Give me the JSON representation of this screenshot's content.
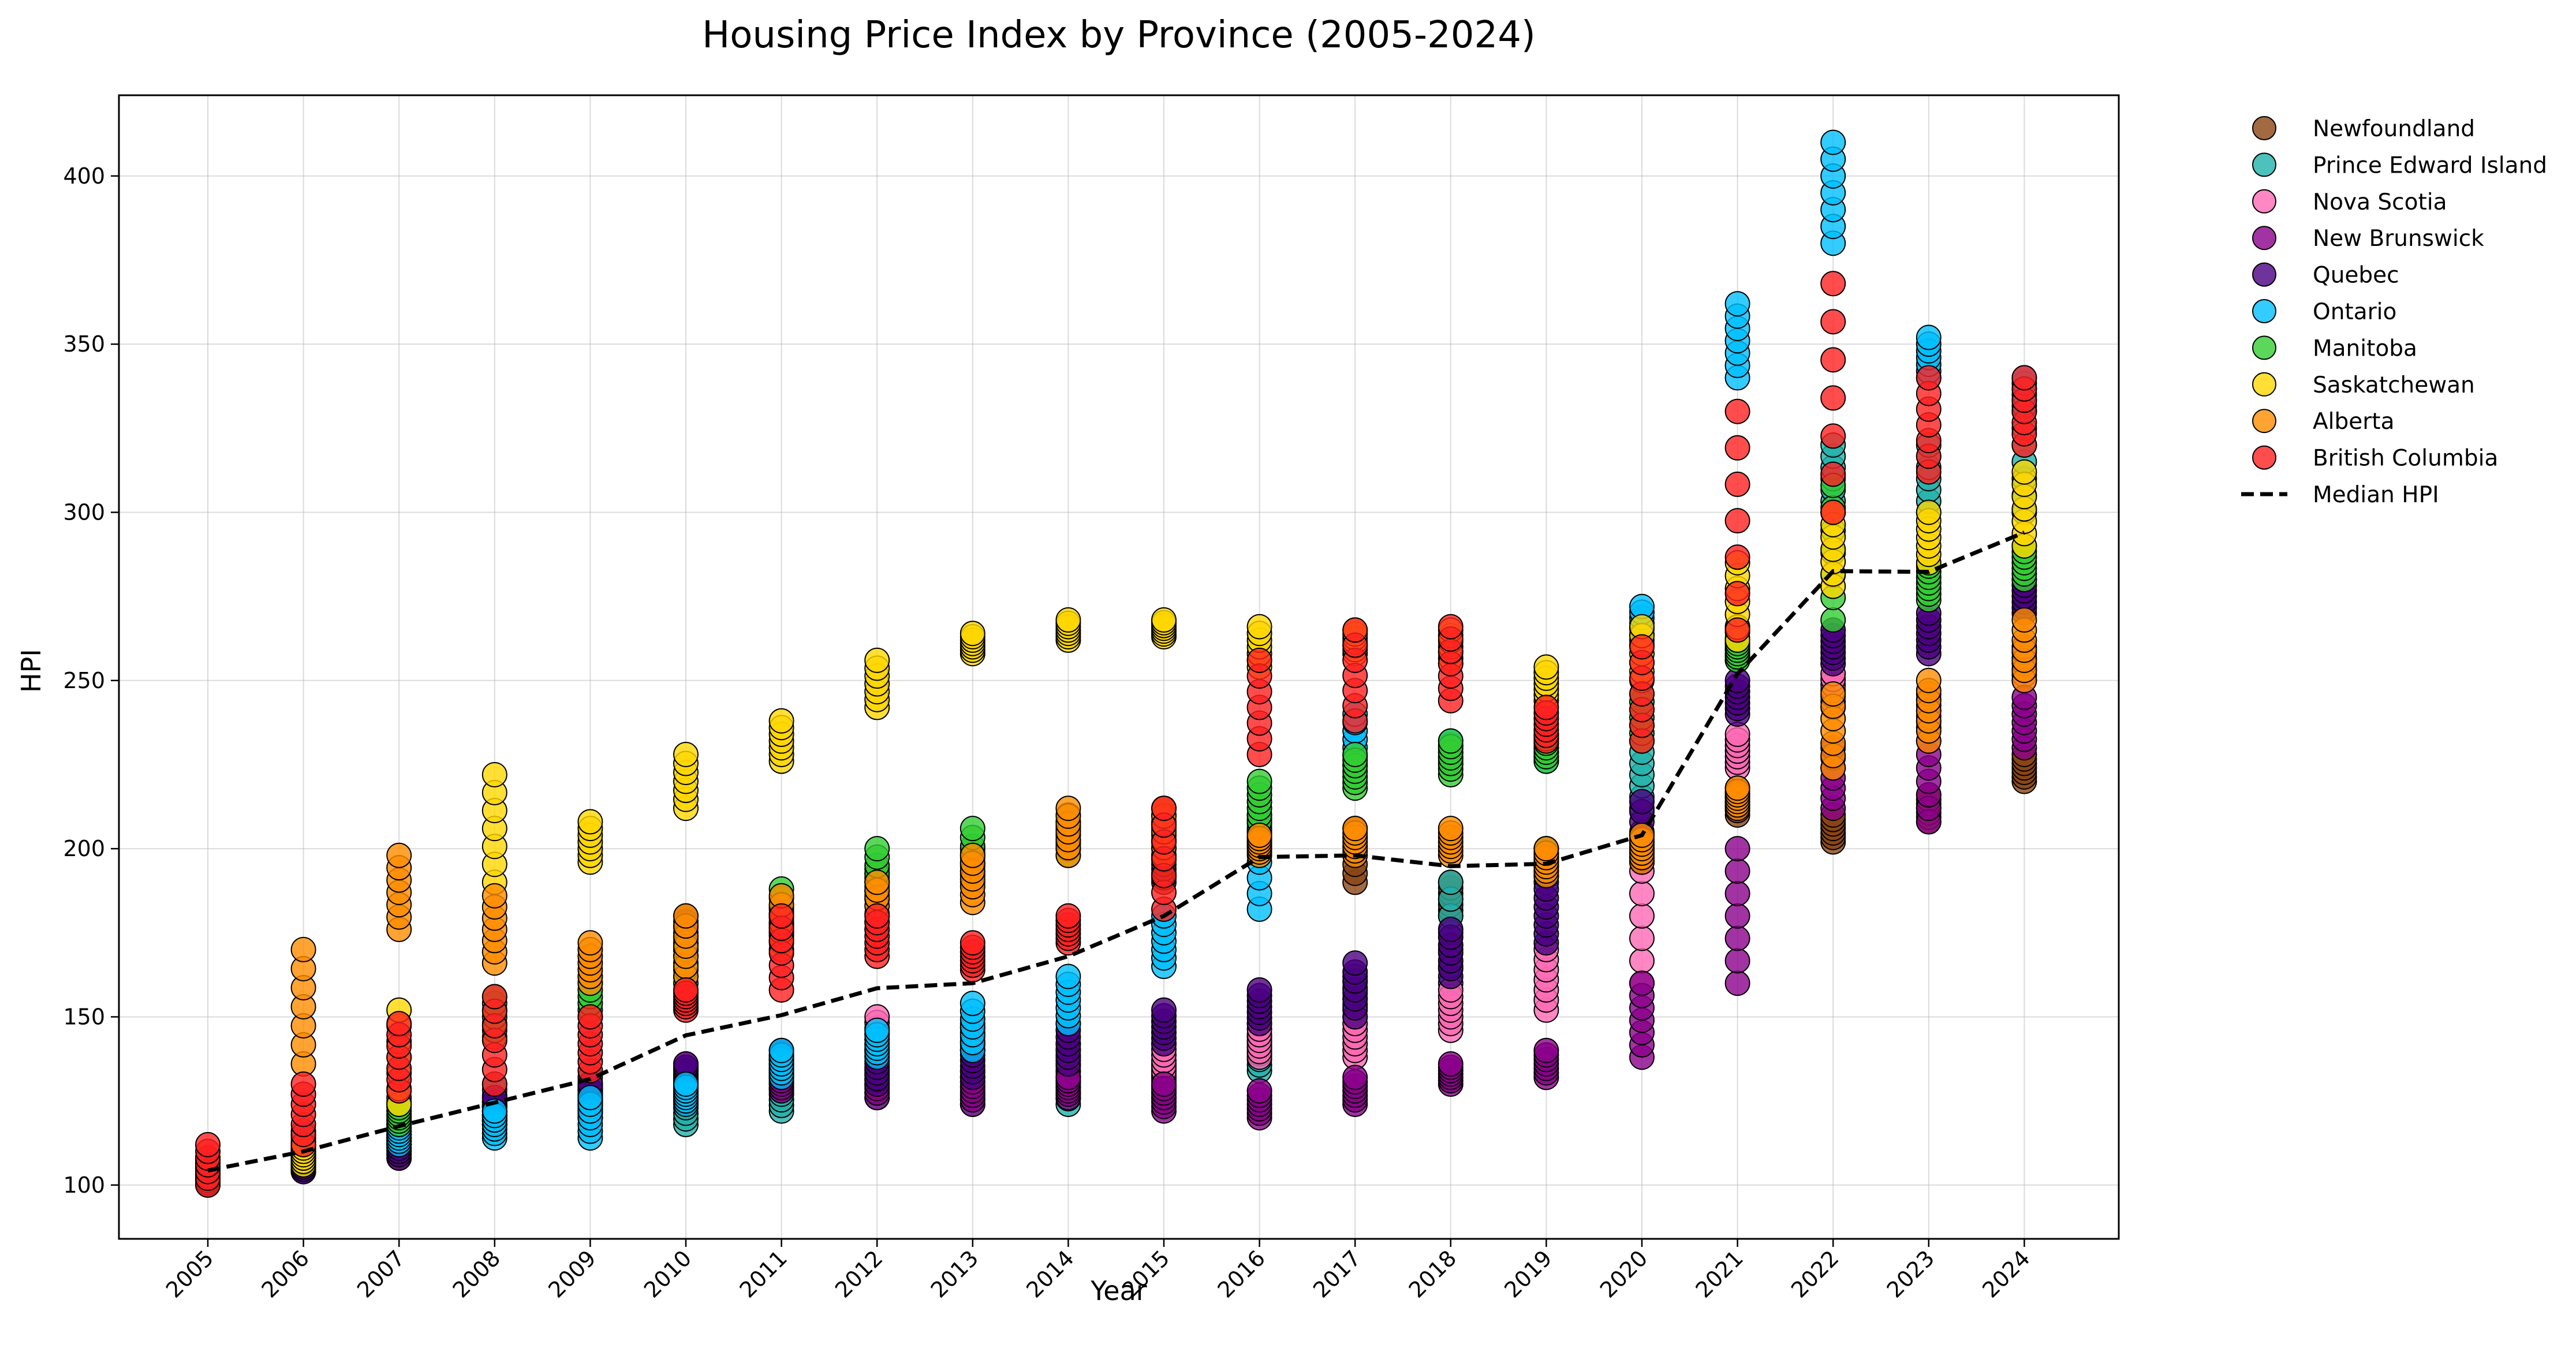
{
  "chart_data": {
    "type": "scatter",
    "title": "Housing Price Index by Province (2005-2024)",
    "xlabel": "Year",
    "ylabel": "HPI",
    "ylim": [
      84,
      424
    ],
    "yticks": [
      100,
      150,
      200,
      250,
      300,
      350,
      400
    ],
    "grid": true,
    "legend_position": "outside-right",
    "categories": [
      "2005",
      "2006",
      "2007",
      "2008",
      "2009",
      "2010",
      "2011",
      "2012",
      "2013",
      "2014",
      "2015",
      "2016",
      "2017",
      "2018",
      "2019",
      "2020",
      "2021",
      "2022",
      "2023",
      "2024"
    ],
    "series": [
      {
        "name": "Newfoundland",
        "color": "#8B4513",
        "values": [
          [
            100,
            104
          ],
          [
            108,
            112
          ],
          [
            108,
            116
          ],
          [
            118,
            126
          ],
          [
            122,
            130
          ],
          [
            170,
            180
          ],
          [
            174,
            182
          ],
          [
            186,
            194
          ],
          [
            192,
            200
          ],
          [
            200,
            208
          ],
          [
            190,
            198
          ],
          [
            202,
            210
          ],
          [
            190,
            206
          ],
          [
            180,
            190
          ],
          [
            192,
            200
          ],
          [
            196,
            204
          ],
          [
            210,
            218
          ],
          [
            202,
            210
          ],
          [
            208,
            216
          ],
          [
            220,
            228
          ]
        ]
      },
      {
        "name": "Prince Edward Island",
        "color": "#20B2AA",
        "values": [
          [
            102,
            108
          ],
          [
            110,
            116
          ],
          [
            118,
            126
          ],
          [
            120,
            130
          ],
          [
            124,
            132
          ],
          [
            118,
            128
          ],
          [
            122,
            132
          ],
          [
            126,
            136
          ],
          [
            124,
            134
          ],
          [
            124,
            134
          ],
          [
            126,
            136
          ],
          [
            134,
            144
          ],
          [
            152,
            162
          ],
          [
            160,
            190
          ],
          [
            190,
            200
          ],
          [
            212,
            232
          ],
          [
            256,
            266
          ],
          [
            300,
            320
          ],
          [
            300,
            320
          ],
          [
            300,
            330
          ]
        ]
      },
      {
        "name": "Nova Scotia",
        "color": "#FF69B4",
        "values": [
          [
            102,
            106
          ],
          [
            106,
            112
          ],
          [
            112,
            118
          ],
          [
            118,
            124
          ],
          [
            124,
            130
          ],
          [
            130,
            136
          ],
          [
            132,
            138
          ],
          [
            140,
            150
          ],
          [
            140,
            148
          ],
          [
            132,
            142
          ],
          [
            132,
            142
          ],
          [
            138,
            148
          ],
          [
            138,
            150
          ],
          [
            146,
            158
          ],
          [
            152,
            170
          ],
          [
            160,
            200
          ],
          [
            224,
            234
          ],
          [
            242,
            252
          ],
          [
            236,
            246
          ],
          [
            250,
            260
          ]
        ]
      },
      {
        "name": "New Brunswick",
        "color": "#8B008B",
        "values": [
          [
            102,
            106
          ],
          [
            104,
            108
          ],
          [
            110,
            116
          ],
          [
            118,
            124
          ],
          [
            120,
            128
          ],
          [
            126,
            132
          ],
          [
            128,
            134
          ],
          [
            126,
            134
          ],
          [
            124,
            132
          ],
          [
            126,
            132
          ],
          [
            122,
            130
          ],
          [
            120,
            128
          ],
          [
            124,
            132
          ],
          [
            130,
            136
          ],
          [
            132,
            140
          ],
          [
            138,
            160
          ],
          [
            160,
            200
          ],
          [
            212,
            230
          ],
          [
            208,
            232
          ],
          [
            230,
            245
          ]
        ]
      },
      {
        "name": "Quebec",
        "color": "#4B0082",
        "values": [
          [
            103,
            108
          ],
          [
            104,
            108
          ],
          [
            108,
            114
          ],
          [
            118,
            126
          ],
          [
            120,
            130
          ],
          [
            130,
            136
          ],
          [
            132,
            140
          ],
          [
            130,
            140
          ],
          [
            132,
            142
          ],
          [
            136,
            148
          ],
          [
            142,
            152
          ],
          [
            148,
            158
          ],
          [
            150,
            166
          ],
          [
            162,
            176
          ],
          [
            172,
            188
          ],
          [
            196,
            214
          ],
          [
            240,
            250
          ],
          [
            255,
            265
          ],
          [
            258,
            270
          ],
          [
            270,
            280
          ]
        ]
      },
      {
        "name": "Ontario",
        "color": "#00BFFF",
        "values": [
          [
            103,
            108
          ],
          [
            106,
            110
          ],
          [
            112,
            118
          ],
          [
            114,
            122
          ],
          [
            114,
            126
          ],
          [
            124,
            130
          ],
          [
            132,
            140
          ],
          [
            138,
            146
          ],
          [
            140,
            154
          ],
          [
            148,
            162
          ],
          [
            165,
            180
          ],
          [
            182,
            210
          ],
          [
            225,
            240
          ],
          [
            225,
            232
          ],
          [
            226,
            234
          ],
          [
            262,
            272
          ],
          [
            340,
            362
          ],
          [
            380,
            410
          ],
          [
            340,
            352
          ],
          [
            330,
            340
          ]
        ]
      },
      {
        "name": "Manitoba",
        "color": "#32CD32",
        "values": [
          [
            103,
            107
          ],
          [
            108,
            112
          ],
          [
            118,
            124
          ],
          [
            144,
            156
          ],
          [
            150,
            162
          ],
          [
            160,
            172
          ],
          [
            172,
            188
          ],
          [
            185,
            200
          ],
          [
            190,
            206
          ],
          [
            198,
            210
          ],
          [
            200,
            212
          ],
          [
            208,
            220
          ],
          [
            218,
            228
          ],
          [
            222,
            232
          ],
          [
            226,
            234
          ],
          [
            232,
            246
          ],
          [
            256,
            262
          ],
          [
            268,
            308
          ],
          [
            274,
            284
          ],
          [
            280,
            290
          ]
        ]
      },
      {
        "name": "Saskatchewan",
        "color": "#FFD700",
        "values": [
          [
            104,
            108
          ],
          [
            106,
            112
          ],
          [
            124,
            152
          ],
          [
            190,
            222
          ],
          [
            196,
            208
          ],
          [
            212,
            228
          ],
          [
            226,
            238
          ],
          [
            242,
            256
          ],
          [
            258,
            264
          ],
          [
            262,
            268
          ],
          [
            263,
            268
          ],
          [
            254,
            266
          ],
          [
            258,
            265
          ],
          [
            255,
            265
          ],
          [
            244,
            254
          ],
          [
            250,
            266
          ],
          [
            262,
            285
          ],
          [
            278,
            300
          ],
          [
            285,
            300
          ],
          [
            290,
            312
          ]
        ]
      },
      {
        "name": "Alberta",
        "color": "#FF8C00",
        "values": [
          [
            104,
            108
          ],
          [
            136,
            170
          ],
          [
            176,
            198
          ],
          [
            166,
            186
          ],
          [
            160,
            172
          ],
          [
            162,
            180
          ],
          [
            170,
            186
          ],
          [
            176,
            190
          ],
          [
            184,
            198
          ],
          [
            198,
            212
          ],
          [
            198,
            212
          ],
          [
            198,
            204
          ],
          [
            198,
            206
          ],
          [
            198,
            206
          ],
          [
            192,
            200
          ],
          [
            196,
            204
          ],
          [
            212,
            218
          ],
          [
            224,
            246
          ],
          [
            232,
            250
          ],
          [
            250,
            268
          ]
        ]
      },
      {
        "name": "British Columbia",
        "color": "#FF2020",
        "values": [
          [
            100,
            112
          ],
          [
            112,
            130
          ],
          [
            128,
            148
          ],
          [
            130,
            156
          ],
          [
            134,
            150
          ],
          [
            152,
            158
          ],
          [
            158,
            180
          ],
          [
            168,
            180
          ],
          [
            164,
            172
          ],
          [
            172,
            180
          ],
          [
            182,
            212
          ],
          [
            228,
            256
          ],
          [
            238,
            265
          ],
          [
            244,
            266
          ],
          [
            232,
            242
          ],
          [
            232,
            260
          ],
          [
            265,
            330
          ],
          [
            300,
            368
          ],
          [
            312,
            340
          ],
          [
            320,
            340
          ]
        ]
      }
    ],
    "median": {
      "name": "Median HPI",
      "values": [
        104.3,
        110,
        117.5,
        124.5,
        131.5,
        144.5,
        150.5,
        158.5,
        160,
        168,
        180,
        197.5,
        198,
        194.8,
        195.5,
        204,
        252,
        282.5,
        282.3,
        294
      ]
    }
  }
}
